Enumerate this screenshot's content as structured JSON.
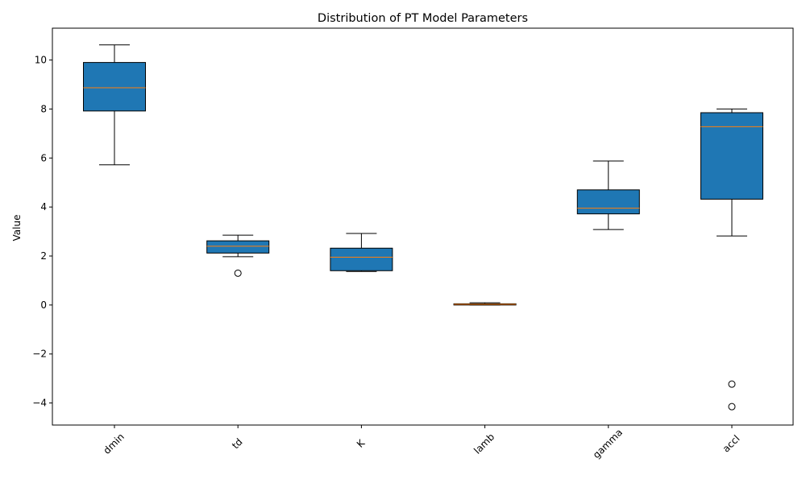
{
  "chart_data": {
    "type": "box",
    "title": "Distribution of PT Model Parameters",
    "xlabel": "",
    "ylabel": "Value",
    "ylim": [
      -4.9,
      11.3
    ],
    "yticks": [
      -4,
      -2,
      0,
      2,
      4,
      6,
      8,
      10
    ],
    "ytick_labels": [
      "−4",
      "−2",
      "0",
      "2",
      "4",
      "6",
      "8",
      "10"
    ],
    "grid": false,
    "categories": [
      "dmin",
      "td",
      "K",
      "lamb",
      "gamma",
      "accl"
    ],
    "boxes": [
      {
        "label": "dmin",
        "whisker_low": 5.72,
        "q1": 7.92,
        "median": 8.87,
        "q3": 9.9,
        "whisker_high": 10.62,
        "outliers": []
      },
      {
        "label": "td",
        "whisker_low": 1.97,
        "q1": 2.12,
        "median": 2.4,
        "q3": 2.62,
        "whisker_high": 2.85,
        "outliers": [
          1.3
        ]
      },
      {
        "label": "K",
        "whisker_low": 1.37,
        "q1": 1.4,
        "median": 1.95,
        "q3": 2.32,
        "whisker_high": 2.92,
        "outliers": []
      },
      {
        "label": "lamb",
        "whisker_low": 0.0,
        "q1": 0.0,
        "median": 0.03,
        "q3": 0.05,
        "whisker_high": 0.09,
        "outliers": []
      },
      {
        "label": "gamma",
        "whisker_low": 3.08,
        "q1": 3.72,
        "median": 3.95,
        "q3": 4.7,
        "whisker_high": 5.88,
        "outliers": []
      },
      {
        "label": "accl",
        "whisker_low": 2.82,
        "q1": 4.32,
        "median": 7.28,
        "q3": 7.85,
        "whisker_high": 8.0,
        "outliers": [
          -3.23,
          -4.15
        ]
      }
    ],
    "colors": {
      "box_fill": "#1f77b4",
      "median": "#ff7f0e",
      "edge": "#000000"
    },
    "xtick_rotation_deg": 45
  }
}
